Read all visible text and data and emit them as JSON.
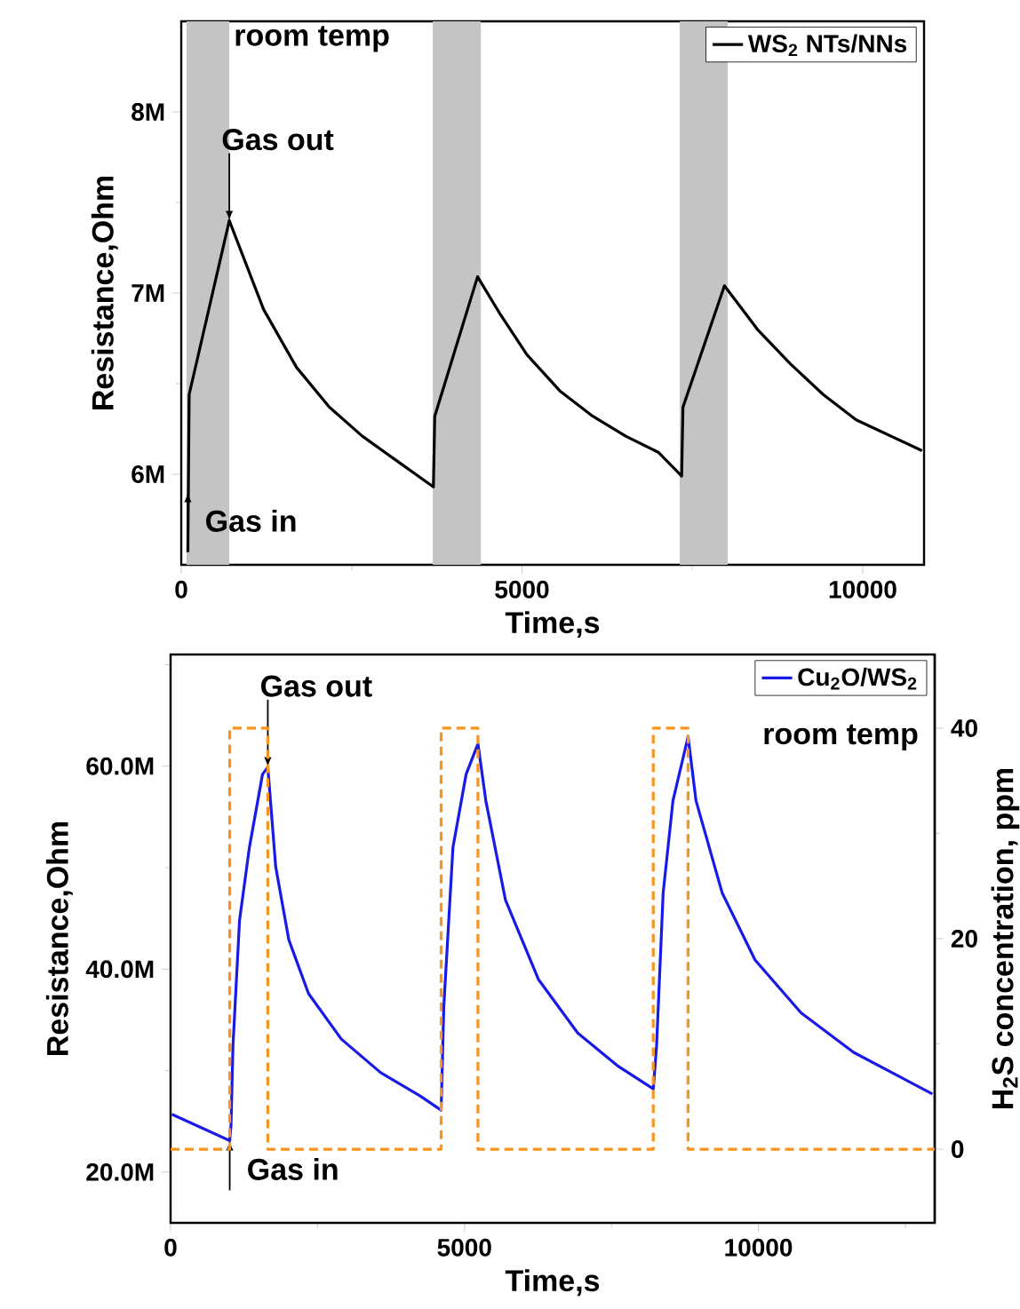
{
  "chart_data": [
    {
      "type": "line",
      "xlabel": "Time,s",
      "ylabel": "Resistance,Ohm",
      "xlim": [
        0,
        10900
      ],
      "xticks": [
        0,
        5000,
        10000,
        {
          "value": 2500,
          "label": null
        },
        {
          "value": 7500,
          "label": null
        }
      ],
      "ylim": [
        5.5,
        8.5
      ],
      "yticks": [
        {
          "value": 6,
          "label": "6M"
        },
        {
          "value": 7,
          "label": "7M"
        },
        {
          "value": 8,
          "label": "8M"
        },
        {
          "value": 6.5,
          "label": null
        },
        {
          "value": 7.5,
          "label": null
        }
      ],
      "legend": "top right",
      "bands": [
        {
          "axis": "x",
          "from": 77,
          "to": 705,
          "color": "#c4c4c4"
        },
        {
          "axis": "x",
          "from": 3691,
          "to": 4396,
          "color": "#c4c4c4"
        },
        {
          "axis": "x",
          "from": 7314,
          "to": 8019,
          "color": "#c4c4c4"
        }
      ],
      "annotations": [
        "room temp",
        {
          "text": "Gas out",
          "x": 705,
          "y": 7.4
        },
        {
          "text": "Gas in",
          "x": 97,
          "y": 5.9
        }
      ],
      "series": [
        {
          "name": "WS$_{2}$ NTs/NNs",
          "color": "#000000",
          "x": [
            97,
            116,
            705,
            1208,
            1691,
            2174,
            2657,
            3140,
            3700,
            3720,
            4348,
            4686,
            5072,
            5556,
            6039,
            6522,
            7005,
            7343,
            7362,
            7971,
            8454,
            8937,
            9420,
            9903,
            10870
          ],
          "values": [
            5.57,
            6.44,
            7.4,
            6.91,
            6.59,
            6.37,
            6.21,
            6.08,
            5.93,
            6.32,
            7.09,
            6.88,
            6.66,
            6.46,
            6.32,
            6.21,
            6.12,
            5.99,
            6.37,
            7.04,
            6.8,
            6.61,
            6.44,
            6.3,
            6.13
          ]
        }
      ]
    },
    {
      "type": "line",
      "xlabel": "Time,s",
      "ylabel": "Resistance,Ohm",
      "y2label": "H$_{2}$S concentration, ppm",
      "xlim": [
        0,
        13000
      ],
      "xticks": [
        0,
        5000,
        10000,
        {
          "value": 2500,
          "label": null
        },
        {
          "value": 7500,
          "label": null
        },
        {
          "value": 12500,
          "label": null
        }
      ],
      "ylim": [
        15,
        71
      ],
      "yticks": [
        {
          "value": 20,
          "label": "20.0M"
        },
        {
          "value": 40,
          "label": "40.0M"
        },
        {
          "value": 60,
          "label": "60.0M"
        },
        {
          "value": 30,
          "label": null
        },
        {
          "value": 50,
          "label": null
        },
        {
          "value": 70,
          "label": null
        }
      ],
      "y2lim": [
        -7,
        47
      ],
      "y2ticks": [
        0,
        20,
        40,
        {
          "value": 10,
          "label": null
        },
        {
          "value": 30,
          "label": null
        }
      ],
      "legend": "top right",
      "annotations": [
        "room temp",
        {
          "text": "Gas out",
          "x": 1654,
          "y": 59.9
        },
        {
          "text": "Gas in",
          "x": 1006,
          "y": 23.1
        }
      ],
      "series": [
        {
          "name": "Cu$_{2}$O/WS$_{2}$",
          "color": "#1a1ae6",
          "x": [
            22,
            1006,
            1028,
            1061,
            1173,
            1341,
            1564,
            1654,
            1788,
            2011,
            2346,
            2905,
            3575,
            4246,
            4603,
            4648,
            4804,
            5028,
            5229,
            5363,
            5698,
            6257,
            6927,
            7598,
            8212,
            8268,
            8380,
            8547,
            8804,
            8939,
            9385,
            9944,
            10726,
            11620,
            12961
          ],
          "values": [
            25.7,
            23.1,
            24.6,
            32.4,
            44.8,
            52.0,
            59.2,
            59.9,
            50.1,
            42.9,
            37.6,
            33.1,
            29.8,
            27.5,
            26.1,
            36.3,
            52.0,
            59.2,
            62.2,
            56.6,
            46.8,
            39.0,
            33.7,
            30.5,
            28.2,
            32.4,
            47.5,
            56.6,
            62.9,
            56.6,
            47.5,
            40.9,
            35.7,
            31.8,
            27.7
          ]
        },
        {
          "type": "step",
          "axis": "y2",
          "line_style": "dashed",
          "color": "#f7931e",
          "x": [
            0,
            1006,
            1654,
            4603,
            5229,
            8212,
            8804,
            13000
          ],
          "values": [
            0,
            40,
            0,
            40,
            0,
            40,
            0,
            0
          ]
        }
      ]
    }
  ]
}
